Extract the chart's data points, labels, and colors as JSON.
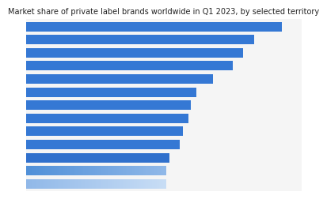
{
  "title": "Market share of private label brands worldwide in Q1 2023, by selected territory",
  "values": [
    93,
    83,
    79,
    75,
    68,
    62,
    60,
    59,
    57,
    56,
    52,
    51,
    51
  ],
  "solid_color": "#3578d4",
  "gradient_starts": [
    "#3070cc",
    "#5090d8",
    "#90b8e8"
  ],
  "gradient_ends": [
    "#3070cc",
    "#90b8e8",
    "#c8ddf5"
  ],
  "n_solid": 10,
  "background_color": "#ffffff",
  "plot_bg": "#f5f5f5",
  "grid_color": "#dddddd",
  "title_fontsize": 7.0,
  "bar_height": 0.72,
  "xlim_max": 100
}
